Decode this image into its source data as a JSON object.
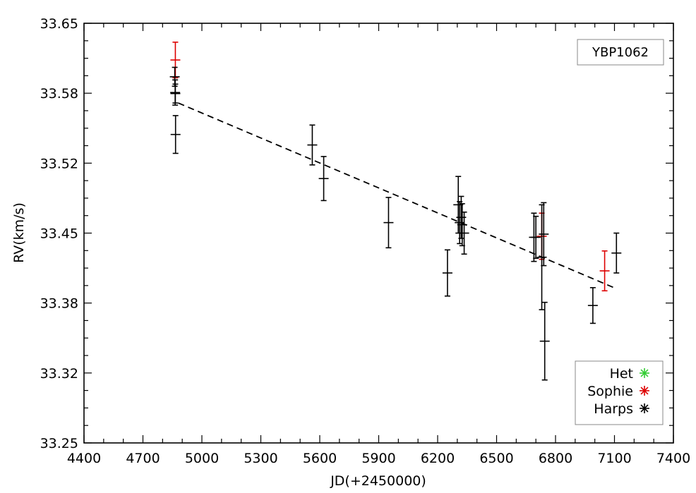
{
  "chart_data": {
    "type": "scatter",
    "title": "",
    "xlabel": "JD(+2450000)",
    "ylabel": "RV(km/s)",
    "xlim": [
      4400,
      7400
    ],
    "ylim": [
      33.25,
      33.65
    ],
    "xticks": [
      4400,
      4700,
      5000,
      5300,
      5600,
      5900,
      6200,
      6500,
      6800,
      7100,
      7400
    ],
    "xtick_labels": [
      "4400",
      "4700",
      "5000",
      "5300",
      "5600",
      "5900",
      "6200",
      "6500",
      "6800",
      "7100",
      "7400"
    ],
    "yticks": [
      33.25,
      33.32,
      33.38,
      33.45,
      33.52,
      33.58,
      33.65
    ],
    "ytick_labels": [
      "33.25",
      "33.32",
      "33.38",
      "33.45",
      "33.52",
      "33.58",
      "33.65"
    ],
    "grid": false,
    "label_box": "YBP1062",
    "legend": {
      "position": "bottom-right",
      "entries": [
        {
          "name": "Het",
          "color": "#33cc33"
        },
        {
          "name": "Sophie",
          "color": "#dd0000"
        },
        {
          "name": "Harps",
          "color": "#000000"
        }
      ]
    },
    "series": [
      {
        "name": "Sophie",
        "color": "#dd0000",
        "x": [
          4865,
          6730,
          7050
        ],
        "y": [
          33.615,
          33.447,
          33.414
        ],
        "err": [
          0.017,
          0.022,
          0.019
        ]
      },
      {
        "name": "Harps",
        "color": "#000000",
        "x": [
          4862,
          4864,
          4865,
          4866,
          5562,
          5620,
          5950,
          6250,
          6305,
          6312,
          6320,
          6325,
          6335,
          6690,
          6700,
          6730,
          6740,
          6745,
          6990,
          7110
        ],
        "y": [
          33.599,
          33.584,
          33.583,
          33.544,
          33.534,
          33.502,
          33.46,
          33.412,
          33.477,
          33.46,
          33.465,
          33.458,
          33.45,
          33.446,
          33.446,
          33.427,
          33.449,
          33.347,
          33.381,
          33.431
        ],
        "err": [
          0.009,
          0.012,
          0.009,
          0.018,
          0.019,
          0.021,
          0.024,
          0.022,
          0.027,
          0.02,
          0.02,
          0.02,
          0.02,
          0.023,
          0.02,
          0.05,
          0.03,
          0.037,
          0.017,
          0.019
        ]
      }
    ],
    "fit_line": {
      "style": "dashed",
      "color": "#000000",
      "x": [
        4880,
        7110
      ],
      "y": [
        33.574,
        33.397
      ]
    }
  }
}
